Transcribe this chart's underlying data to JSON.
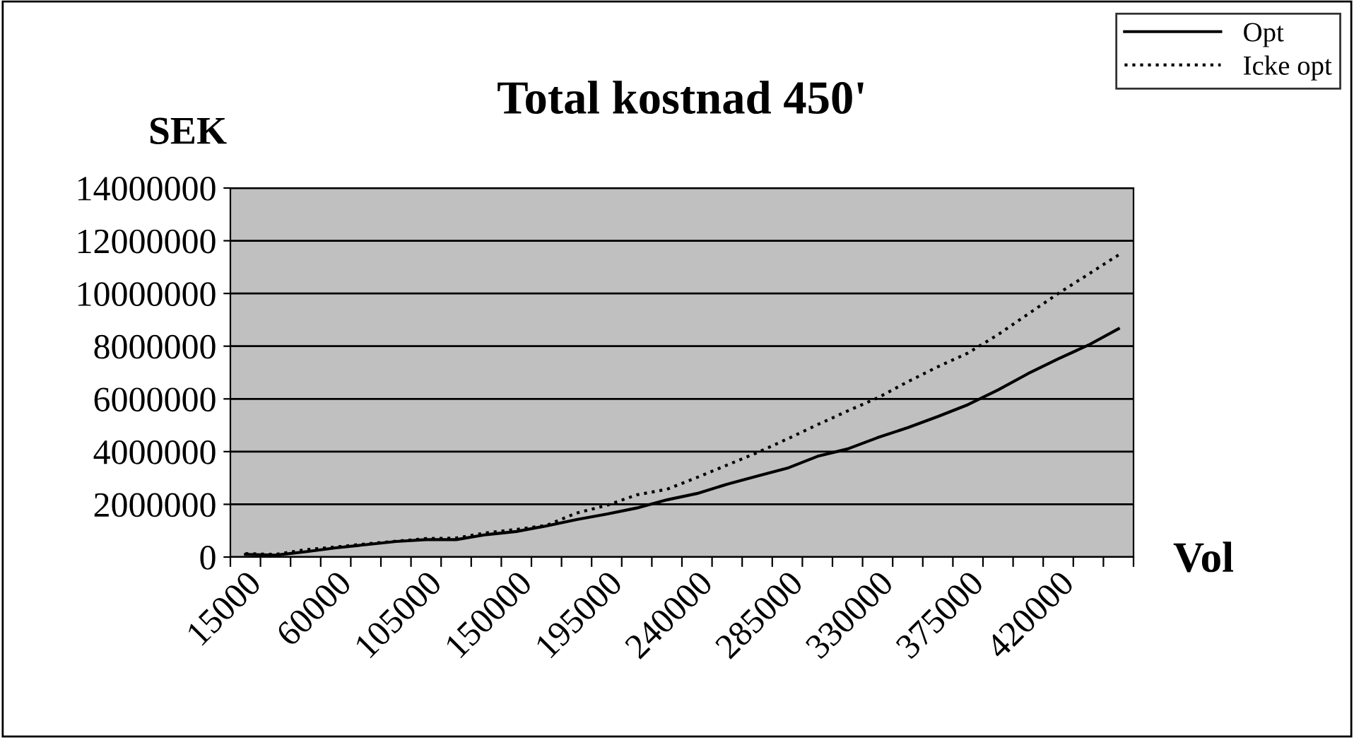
{
  "chart_data": {
    "type": "line",
    "title": "Total kostnad 450'",
    "ylabel": "SEK",
    "xlabel": "Vol",
    "categories": [
      "15000",
      null,
      null,
      "60000",
      null,
      null,
      "105000",
      null,
      null,
      "150000",
      null,
      null,
      "195000",
      null,
      null,
      "240000",
      null,
      null,
      "285000",
      null,
      null,
      "330000",
      null,
      null,
      "375000",
      null,
      null,
      "420000",
      null,
      null
    ],
    "series": [
      {
        "name": "Opt",
        "color": "#000000",
        "line_style": "solid",
        "values": [
          100000,
          70000,
          200000,
          350000,
          470000,
          590000,
          660000,
          660000,
          850000,
          970000,
          1180000,
          1420000,
          1630000,
          1860000,
          2170000,
          2410000,
          2760000,
          3070000,
          3370000,
          3820000,
          4100000,
          4530000,
          4910000,
          5330000,
          5780000,
          6340000,
          6960000,
          7520000,
          8040000,
          8660000
        ]
      },
      {
        "name": "Icke opt",
        "color": "#000000",
        "line_style": "dotted",
        "values": [
          130000,
          100000,
          280000,
          380000,
          500000,
          600000,
          700000,
          720000,
          920000,
          1050000,
          1200000,
          1670000,
          1960000,
          2360000,
          2570000,
          3020000,
          3490000,
          3960000,
          4480000,
          5020000,
          5540000,
          6040000,
          6650000,
          7220000,
          7740000,
          8440000,
          9220000,
          10000000,
          10730000,
          11460000
        ]
      }
    ],
    "ylim": [
      0,
      14000000
    ],
    "yticks": [
      0,
      2000000,
      4000000,
      6000000,
      8000000,
      10000000,
      12000000,
      14000000
    ],
    "grid": "y",
    "legend": "top right",
    "marker": "none"
  }
}
